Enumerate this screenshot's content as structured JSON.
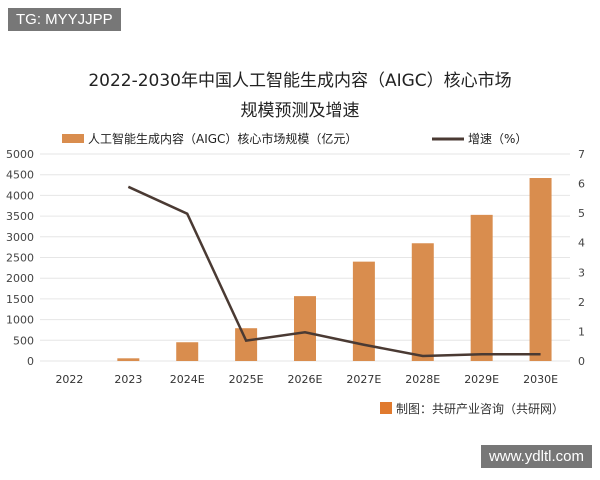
{
  "watermark_tag": "TG: MYYJJPP",
  "watermark_site": "www.ydltl.com",
  "source": "制图：共研产业咨询（共研网）",
  "colors": {
    "bar": "#d98d4e",
    "line": "#4a3a33"
  },
  "chart_data": {
    "type": "bar+line",
    "title_line1": "2022-2030年中国人工智能生成内容（AIGC）核心市场",
    "title_line2": "规模预测及增速",
    "categories": [
      "2022",
      "2023",
      "2024E",
      "2025E",
      "2026E",
      "2027E",
      "2028E",
      "2029E",
      "2030E"
    ],
    "series": [
      {
        "name": "人工智能生成内容（AIGC）核心市场规模（亿元）",
        "type": "bar",
        "axis": "left",
        "values": [
          0,
          65,
          453,
          792,
          1567,
          2400,
          2844,
          3530,
          4420
        ]
      },
      {
        "name": "增速（%）",
        "type": "line",
        "axis": "right",
        "values": [
          null,
          5.89,
          4.98,
          0.69,
          0.97,
          0.55,
          0.17,
          0.23,
          0.23
        ]
      }
    ],
    "left_axis": {
      "ylim": [
        0,
        5000
      ],
      "ticks": [
        "0",
        "500",
        "1000",
        "1500",
        "2000",
        "2500",
        "3000",
        "3500",
        "4000",
        "4500",
        "5000"
      ]
    },
    "right_axis": {
      "ylim": [
        0,
        7
      ],
      "ticks": [
        "0",
        "1",
        "2",
        "3",
        "4",
        "5",
        "6",
        "7"
      ]
    },
    "grid": true,
    "legend": "top"
  }
}
